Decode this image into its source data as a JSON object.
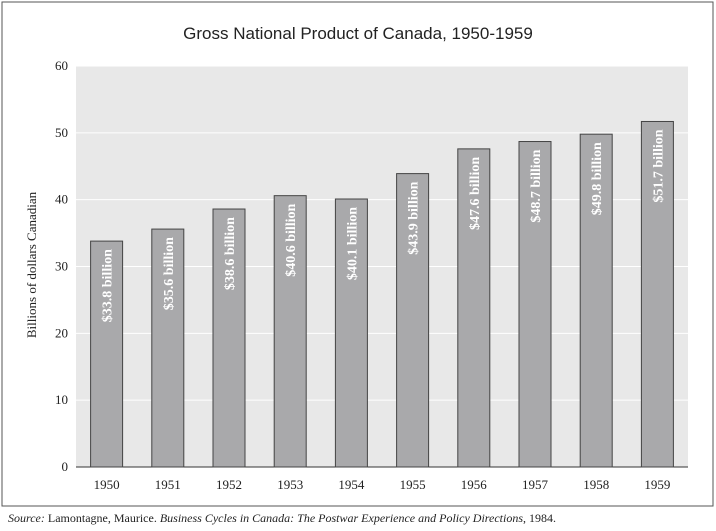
{
  "chart_data": {
    "type": "bar",
    "title": "Gross National Product of Canada, 1950-1959",
    "y_label": "Billions of dollars Canadian",
    "categories": [
      "1950",
      "1951",
      "1952",
      "1953",
      "1954",
      "1955",
      "1956",
      "1957",
      "1958",
      "1959"
    ],
    "values": [
      33.8,
      35.6,
      38.6,
      40.6,
      40.1,
      43.9,
      47.6,
      48.7,
      49.8,
      51.7
    ],
    "value_labels": [
      "$33.8 billion",
      "$35.6 billion",
      "$38.6 billion",
      "$40.6 billion",
      "$40.1 billion",
      "$43.9 billion",
      "$47.6 billion",
      "$48.7 billion",
      "$49.8 billion",
      "$51.7 billion"
    ],
    "color": "#a9a9ab",
    "ylim": [
      0,
      60
    ],
    "yticks": [
      0,
      10,
      20,
      30,
      40,
      50,
      60
    ],
    "grid": true,
    "source": {
      "label": "Source:",
      "author": "Lamontagne, Maurice.",
      "work": "Business Cycles in Canada: The Postwar Experience and Policy Directions",
      "rest": ", 1984."
    }
  }
}
